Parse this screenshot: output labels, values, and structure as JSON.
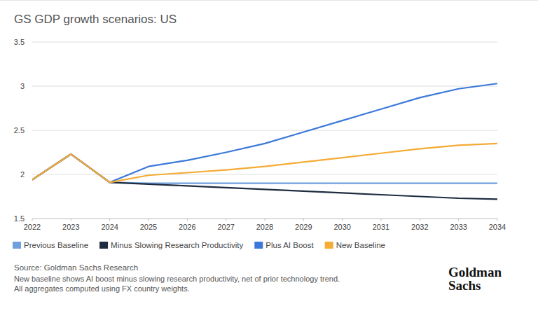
{
  "chart_data": {
    "type": "line",
    "title": "GS GDP growth scenarios: US",
    "x": [
      2022,
      2023,
      2024,
      2025,
      2026,
      2027,
      2028,
      2029,
      2030,
      2031,
      2032,
      2033,
      2034
    ],
    "xlim": [
      2022,
      2034
    ],
    "xticks": [
      2022,
      2023,
      2024,
      2025,
      2026,
      2027,
      2028,
      2029,
      2030,
      2031,
      2032,
      2033,
      2034
    ],
    "ylim": [
      1.5,
      3.5
    ],
    "yticks": [
      1.5,
      2,
      2.5,
      3,
      3.5
    ],
    "grid": true,
    "legend": "bottom",
    "series": [
      {
        "name": "Previous Baseline",
        "color": "#6fa0dc",
        "values": [
          1.94,
          2.23,
          1.91,
          1.9,
          1.9,
          1.9,
          1.9,
          1.9,
          1.9,
          1.9,
          1.9,
          1.9,
          1.9
        ]
      },
      {
        "name": "Minus Slowing Research Productivity",
        "color": "#1e2c40",
        "values": [
          1.94,
          2.23,
          1.91,
          1.89,
          1.87,
          1.85,
          1.83,
          1.81,
          1.79,
          1.77,
          1.75,
          1.73,
          1.72
        ]
      },
      {
        "name": "Plus AI Boost",
        "color": "#3c78d8",
        "values": [
          1.94,
          2.23,
          1.91,
          2.09,
          2.16,
          2.25,
          2.35,
          2.48,
          2.61,
          2.74,
          2.87,
          2.97,
          3.03
        ]
      },
      {
        "name": "New Baseline",
        "color": "#f5ab35",
        "values": [
          1.94,
          2.23,
          1.91,
          1.99,
          2.02,
          2.05,
          2.09,
          2.14,
          2.19,
          2.24,
          2.29,
          2.33,
          2.35
        ]
      }
    ],
    "source": "Source: Goldman Sachs Research",
    "notes": [
      "New baseline shows AI boost minus slowing research productivity, net of prior technology trend.",
      "All aggregates computed using FX country weights."
    ],
    "logo": [
      "Goldman",
      "Sachs"
    ]
  }
}
